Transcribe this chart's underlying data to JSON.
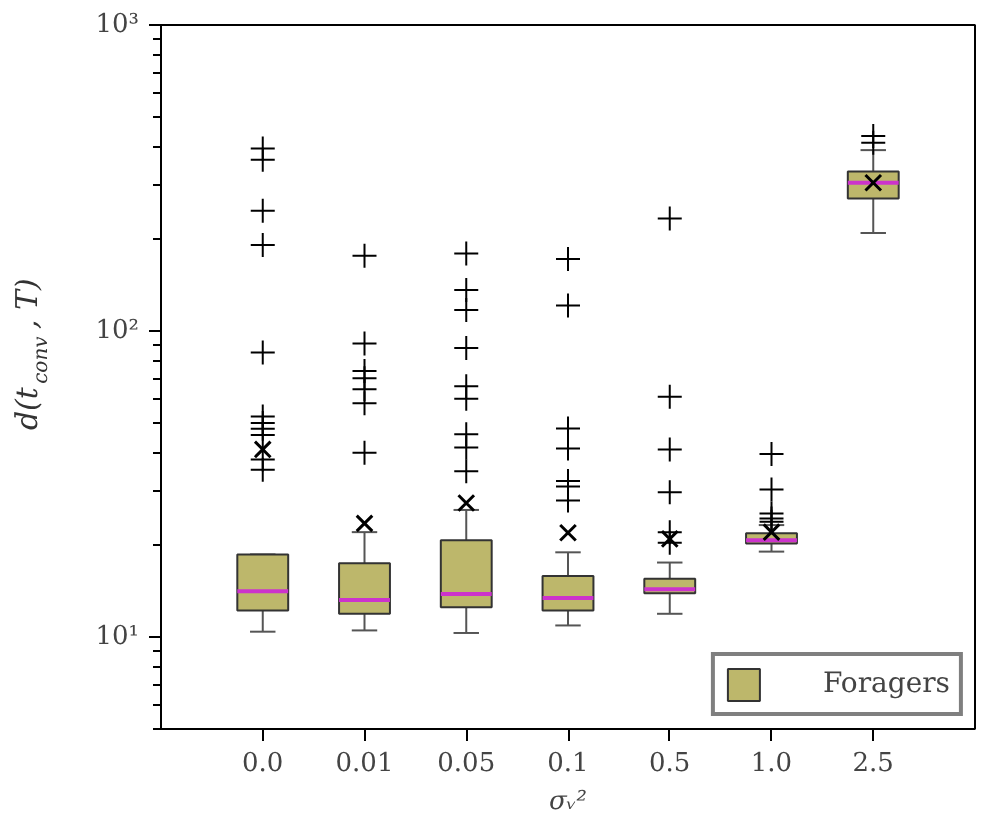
{
  "chart_data": {
    "type": "box",
    "xlabel": "σᵥ²",
    "ylabel": "d(t$_{conv}$, T)",
    "categories": [
      "0.0",
      "0.01",
      "0.05",
      "0.1",
      "0.5",
      "1.0",
      "2.5"
    ],
    "series": [
      {
        "name": "Foragers",
        "color": "#bdb76b",
        "boxes": [
          {
            "low": 10.4,
            "q1": 12.2,
            "median": 14.1,
            "q3": 18.6,
            "high": 18.6,
            "mean": 41,
            "outliers": [
              395,
              363,
              247,
              191,
              85,
              52.5,
              50,
              47.9,
              45.7,
              38,
              35.2
            ]
          },
          {
            "low": 10.5,
            "q1": 11.9,
            "median": 13.2,
            "q3": 17.4,
            "high": 22,
            "mean": 23.5,
            "outliers": [
              176,
              91,
              74,
              70,
              64.5,
              58,
              40
            ]
          },
          {
            "low": 10.3,
            "q1": 12.5,
            "median": 13.8,
            "q3": 20.7,
            "high": 26,
            "mean": 27.4,
            "outliers": [
              179,
              136,
              117,
              88,
              66,
              60,
              46,
              41.6,
              34.8
            ]
          },
          {
            "low": 10.9,
            "q1": 12.2,
            "median": 13.4,
            "q3": 15.8,
            "high": 18.9,
            "mean": 21.9,
            "outliers": [
              172,
              121,
              48,
              41.3,
              32.3,
              31,
              27.9
            ]
          },
          {
            "low": 11.9,
            "q1": 13.9,
            "median": 14.3,
            "q3": 15.5,
            "high": 17.5,
            "mean": 20.9,
            "outliers": [
              233,
              61,
              41,
              29.7,
              22,
              20.3
            ]
          },
          {
            "low": 19,
            "q1": 20.2,
            "median": 20.7,
            "q3": 21.8,
            "high": 23.2,
            "mean": 22,
            "outliers": [
              39.6,
              30.3,
              25.3,
              24.4,
              23.8
            ]
          },
          {
            "low": 209,
            "q1": 271,
            "median": 305,
            "q3": 332,
            "high": 390,
            "mean": 305,
            "outliers": [
              412,
              434
            ]
          }
        ]
      }
    ],
    "log": "y",
    "ylim": [
      5,
      1000
    ],
    "yticks": [
      {
        "value": 10,
        "label": "10¹"
      },
      {
        "value": 100,
        "label": "10²"
      },
      {
        "value": 1000,
        "label": "10³"
      }
    ],
    "grid": false,
    "legend": "bottom right"
  }
}
